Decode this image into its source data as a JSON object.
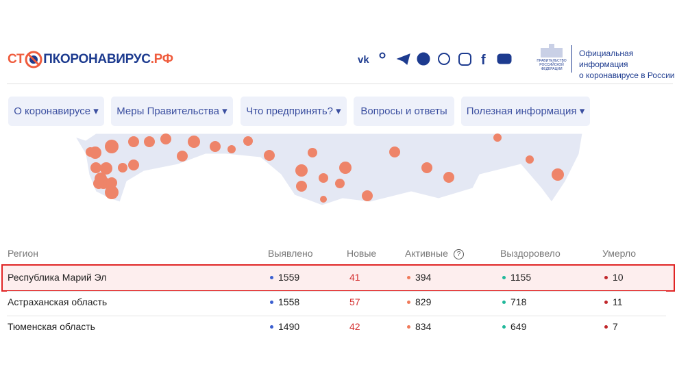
{
  "header": {
    "logo": {
      "left": "СТ",
      "right": "ПКОРОНАВИРУС",
      "domain": ".РФ"
    },
    "government": [
      "ПРАВИТЕЛЬСТВО",
      "РОССИЙСКОЙ",
      "ФЕДЕРАЦИИ"
    ],
    "info": [
      "Официальная информация",
      "о коронавирусе в России"
    ]
  },
  "nav": [
    "О коронавирусе",
    "Меры Правительства",
    "Что предпринять?",
    "Вопросы и ответы",
    "Полезная информация"
  ],
  "table": {
    "columns": [
      "Регион",
      "Выявлено",
      "Новые",
      "Активные",
      "Выздоровело",
      "Умерло"
    ],
    "rows": [
      [
        "Республика Марий Эл",
        1559,
        41,
        394,
        1155,
        10
      ],
      [
        "Астраханская область",
        1558,
        57,
        829,
        718,
        11
      ],
      [
        "Тюменская область",
        1490,
        42,
        834,
        649,
        7
      ]
    ]
  }
}
